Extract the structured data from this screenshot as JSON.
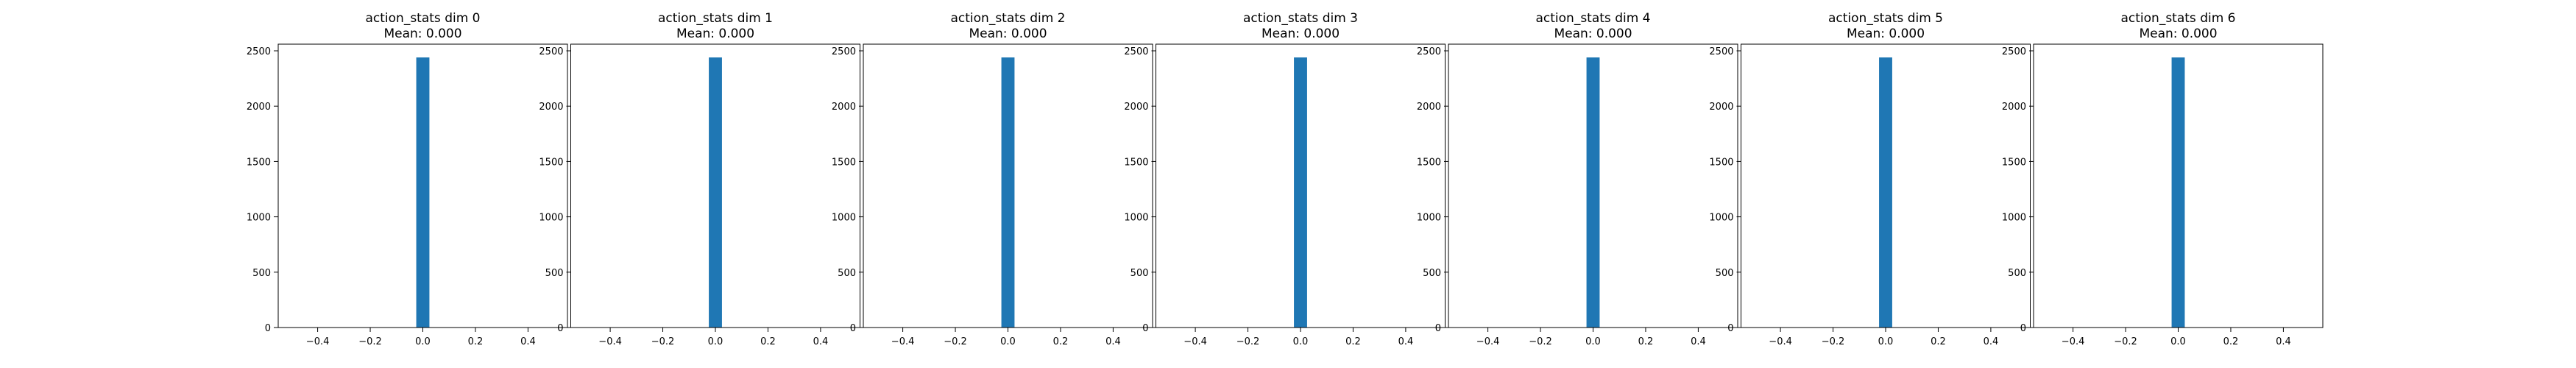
{
  "chart_data": [
    {
      "type": "bar",
      "title": "action_stats dim 0",
      "subtitle": "Mean: 0.000",
      "xlabel": "",
      "ylabel": "",
      "xlim": [
        -0.55,
        0.55
      ],
      "ylim": [
        0,
        2560
      ],
      "xticks": [
        -0.4,
        -0.2,
        0.0,
        0.2,
        0.4
      ],
      "xtick_labels": [
        "−0.4",
        "−0.2",
        "0.0",
        "0.2",
        "0.4"
      ],
      "yticks": [
        0,
        500,
        1000,
        1500,
        2000,
        2500
      ],
      "ytick_labels": [
        "0",
        "500",
        "1000",
        "1500",
        "2000",
        "2500"
      ],
      "bins": [
        {
          "x0": -0.025,
          "x1": 0.025,
          "count": 2440
        }
      ],
      "bar_color": "#1f77b4",
      "grid": false
    },
    {
      "type": "bar",
      "title": "action_stats dim 1",
      "subtitle": "Mean: 0.000",
      "xlabel": "",
      "ylabel": "",
      "xlim": [
        -0.55,
        0.55
      ],
      "ylim": [
        0,
        2560
      ],
      "xticks": [
        -0.4,
        -0.2,
        0.0,
        0.2,
        0.4
      ],
      "xtick_labels": [
        "−0.4",
        "−0.2",
        "0.0",
        "0.2",
        "0.4"
      ],
      "yticks": [
        0,
        500,
        1000,
        1500,
        2000,
        2500
      ],
      "ytick_labels": [
        "0",
        "500",
        "1000",
        "1500",
        "2000",
        "2500"
      ],
      "bins": [
        {
          "x0": -0.025,
          "x1": 0.025,
          "count": 2440
        }
      ],
      "bar_color": "#1f77b4",
      "grid": false
    },
    {
      "type": "bar",
      "title": "action_stats dim 2",
      "subtitle": "Mean: 0.000",
      "xlabel": "",
      "ylabel": "",
      "xlim": [
        -0.55,
        0.55
      ],
      "ylim": [
        0,
        2560
      ],
      "xticks": [
        -0.4,
        -0.2,
        0.0,
        0.2,
        0.4
      ],
      "xtick_labels": [
        "−0.4",
        "−0.2",
        "0.0",
        "0.2",
        "0.4"
      ],
      "yticks": [
        0,
        500,
        1000,
        1500,
        2000,
        2500
      ],
      "ytick_labels": [
        "0",
        "500",
        "1000",
        "1500",
        "2000",
        "2500"
      ],
      "bins": [
        {
          "x0": -0.025,
          "x1": 0.025,
          "count": 2440
        }
      ],
      "bar_color": "#1f77b4",
      "grid": false
    },
    {
      "type": "bar",
      "title": "action_stats dim 3",
      "subtitle": "Mean: 0.000",
      "xlabel": "",
      "ylabel": "",
      "xlim": [
        -0.55,
        0.55
      ],
      "ylim": [
        0,
        2560
      ],
      "xticks": [
        -0.4,
        -0.2,
        0.0,
        0.2,
        0.4
      ],
      "xtick_labels": [
        "−0.4",
        "−0.2",
        "0.0",
        "0.2",
        "0.4"
      ],
      "yticks": [
        0,
        500,
        1000,
        1500,
        2000,
        2500
      ],
      "ytick_labels": [
        "0",
        "500",
        "1000",
        "1500",
        "2000",
        "2500"
      ],
      "bins": [
        {
          "x0": -0.025,
          "x1": 0.025,
          "count": 2440
        }
      ],
      "bar_color": "#1f77b4",
      "grid": false
    },
    {
      "type": "bar",
      "title": "action_stats dim 4",
      "subtitle": "Mean: 0.000",
      "xlabel": "",
      "ylabel": "",
      "xlim": [
        -0.55,
        0.55
      ],
      "ylim": [
        0,
        2560
      ],
      "xticks": [
        -0.4,
        -0.2,
        0.0,
        0.2,
        0.4
      ],
      "xtick_labels": [
        "−0.4",
        "−0.2",
        "0.0",
        "0.2",
        "0.4"
      ],
      "yticks": [
        0,
        500,
        1000,
        1500,
        2000,
        2500
      ],
      "ytick_labels": [
        "0",
        "500",
        "1000",
        "1500",
        "2000",
        "2500"
      ],
      "bins": [
        {
          "x0": -0.025,
          "x1": 0.025,
          "count": 2440
        }
      ],
      "bar_color": "#1f77b4",
      "grid": false
    },
    {
      "type": "bar",
      "title": "action_stats dim 5",
      "subtitle": "Mean: 0.000",
      "xlabel": "",
      "ylabel": "",
      "xlim": [
        -0.55,
        0.55
      ],
      "ylim": [
        0,
        2560
      ],
      "xticks": [
        -0.4,
        -0.2,
        0.0,
        0.2,
        0.4
      ],
      "xtick_labels": [
        "−0.4",
        "−0.2",
        "0.0",
        "0.2",
        "0.4"
      ],
      "yticks": [
        0,
        500,
        1000,
        1500,
        2000,
        2500
      ],
      "ytick_labels": [
        "0",
        "500",
        "1000",
        "1500",
        "2000",
        "2500"
      ],
      "bins": [
        {
          "x0": -0.025,
          "x1": 0.025,
          "count": 2440
        }
      ],
      "bar_color": "#1f77b4",
      "grid": false
    },
    {
      "type": "bar",
      "title": "action_stats dim 6",
      "subtitle": "Mean: 0.000",
      "xlabel": "",
      "ylabel": "",
      "xlim": [
        -0.55,
        0.55
      ],
      "ylim": [
        0,
        2560
      ],
      "xticks": [
        -0.4,
        -0.2,
        0.0,
        0.2,
        0.4
      ],
      "xtick_labels": [
        "−0.4",
        "−0.2",
        "0.0",
        "0.2",
        "0.4"
      ],
      "yticks": [
        0,
        500,
        1000,
        1500,
        2000,
        2500
      ],
      "ytick_labels": [
        "0",
        "500",
        "1000",
        "1500",
        "2000",
        "2500"
      ],
      "bins": [
        {
          "x0": -0.025,
          "x1": 0.025,
          "count": 2440
        }
      ],
      "bar_color": "#1f77b4",
      "grid": false
    }
  ]
}
